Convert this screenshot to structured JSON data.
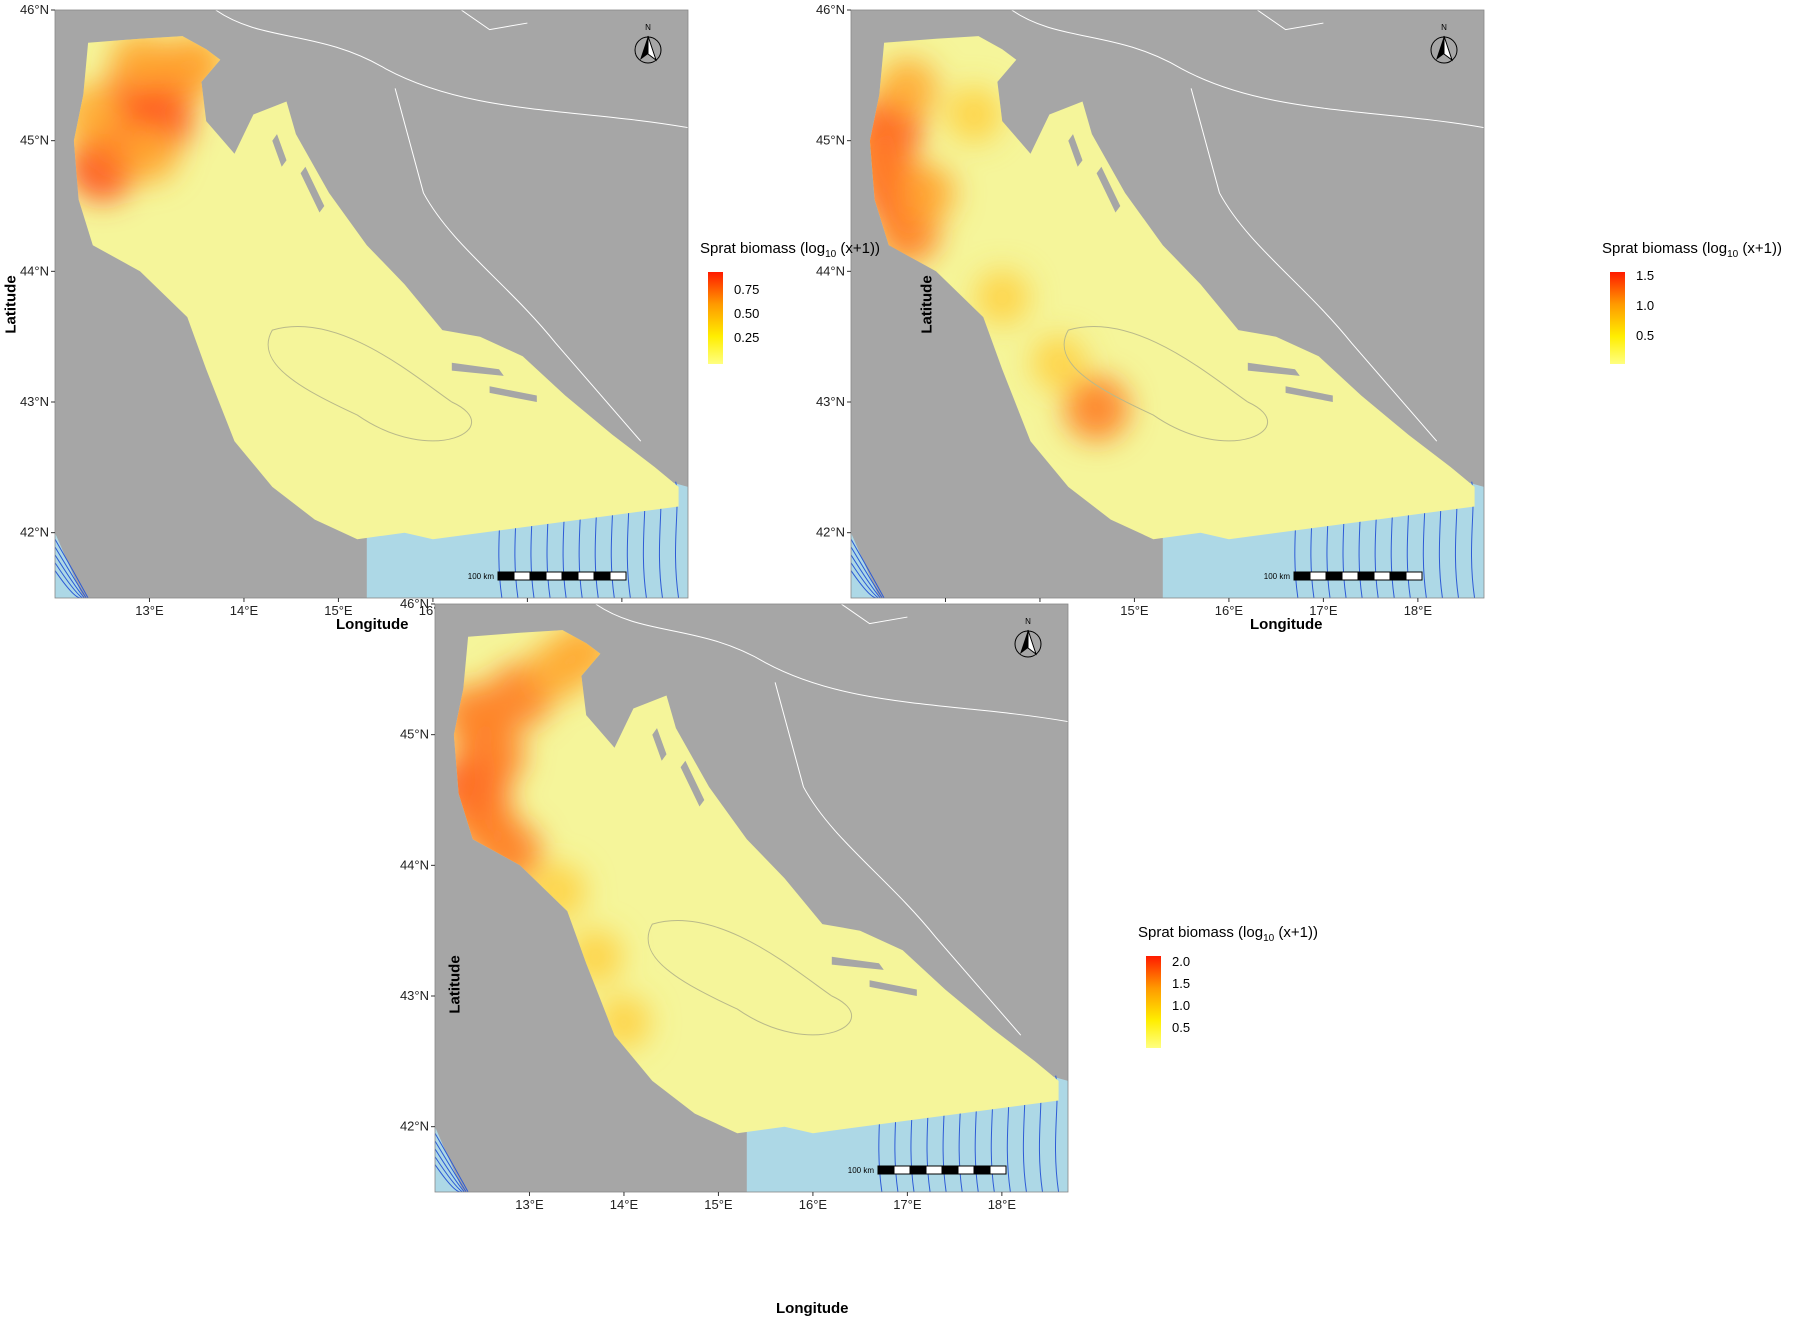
{
  "panels": [
    {
      "legend": {
        "title_main": "Sprat biomass (log",
        "title_sub": "10",
        "title_end": " (x+1))",
        "ticks": [
          "0.75",
          "0.50",
          "0.25"
        ],
        "tick_fracs": [
          0.8,
          0.5,
          0.2
        ]
      },
      "hotspots": "north"
    },
    {
      "legend": {
        "title_main": "Sprat biomass (log",
        "title_sub": "10",
        "title_end": " (x+1))",
        "ticks": [
          "1.5",
          "1.0",
          "0.5"
        ],
        "tick_fracs": [
          0.95,
          0.6,
          0.25
        ]
      },
      "hotspots": "west"
    },
    {
      "legend": {
        "title_main": "Sprat biomass (log",
        "title_sub": "10",
        "title_end": " (x+1))",
        "ticks": [
          "2.0",
          "1.5",
          "1.0",
          "0.5"
        ],
        "tick_fracs": [
          0.92,
          0.7,
          0.47,
          0.24
        ]
      },
      "hotspots": "coast"
    }
  ],
  "axes": {
    "xlabel": "Longitude",
    "ylabel": "Latitude",
    "lon_ticks": [
      "13°E",
      "14°E",
      "15°E",
      "16°E",
      "17°E",
      "18°E"
    ],
    "lat_ticks": [
      "46°N",
      "45°N",
      "44°N",
      "43°N",
      "42°N"
    ],
    "lon_values": [
      13,
      14,
      15,
      16,
      17,
      18
    ],
    "lat_values": [
      46,
      45,
      44,
      43,
      42
    ],
    "lon_range": [
      12,
      18.7
    ],
    "lat_range": [
      41.5,
      46
    ]
  },
  "map": {
    "north_label": "N",
    "scalebar_label": "100 km",
    "colors": {
      "land": "#a6a6a6",
      "sea": "#add8e6",
      "border": "#ffffff",
      "bathymetry": "#2d5bd6",
      "low": "#f5f59a",
      "high": "#ff2200"
    }
  }
}
